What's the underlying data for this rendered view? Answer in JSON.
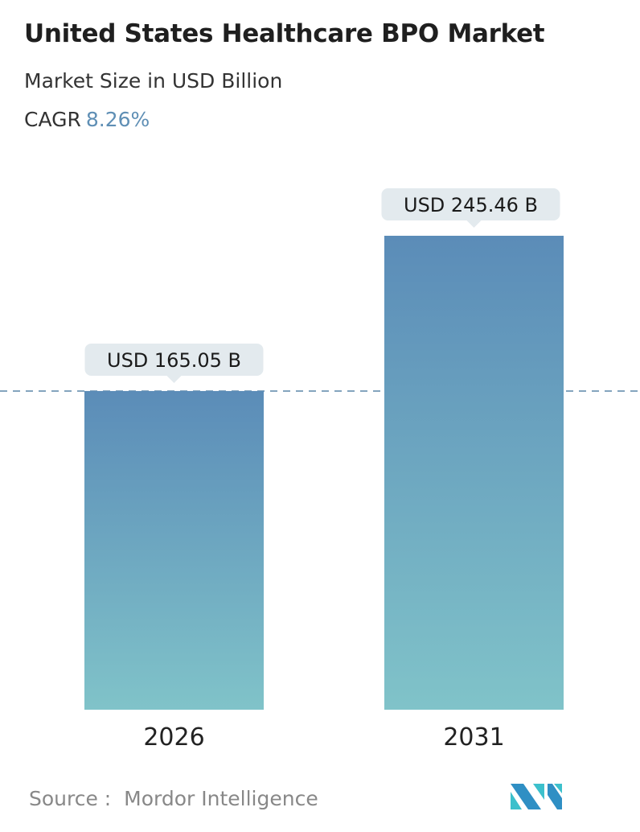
{
  "title": "United States Healthcare BPO Market",
  "subtitle": "Market Size in USD Billion",
  "cagr": {
    "label": "CAGR",
    "value": "8.26%"
  },
  "source": {
    "label": "Source :",
    "name": "Mordor Intelligence"
  },
  "colors": {
    "bar_top": "#5b8cb8",
    "bar_bottom": "#80c3c9",
    "label_bg": "#e3eaee",
    "dashed_line": "#5b86a8",
    "cagr_value": "#5f8fb5"
  },
  "chart_data": {
    "type": "bar",
    "categories": [
      "2026",
      "2031"
    ],
    "values": [
      165.05,
      245.46
    ],
    "data_labels": [
      "USD 165.05 B",
      "USD 245.46 B"
    ],
    "unit": "USD Billion",
    "reference_line": {
      "value": 165.05,
      "style": "dashed"
    },
    "grid": false,
    "ylim": [
      0,
      245.46
    ]
  }
}
